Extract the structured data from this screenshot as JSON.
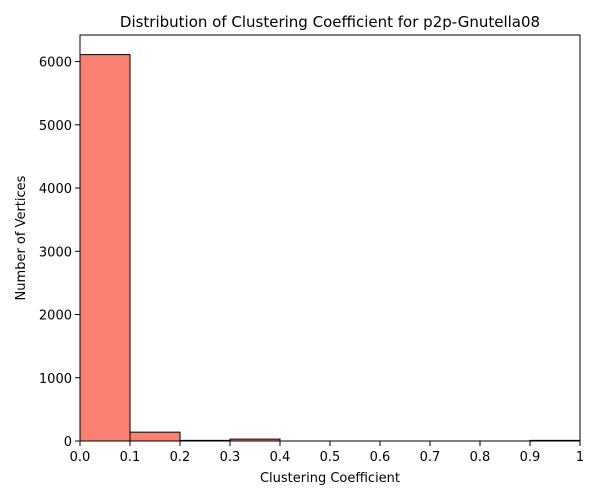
{
  "chart_data": {
    "type": "bar",
    "title": "Distribution of Clustering Coefficient for p2p-Gnutella08",
    "xlabel": "Clustering Coefficient",
    "ylabel": "Number of Vertices",
    "bin_edges": [
      0.0,
      0.1,
      0.2,
      0.3,
      0.4,
      0.5,
      0.6,
      0.7,
      0.8,
      0.9,
      1.0
    ],
    "values": [
      6110,
      140,
      10,
      30,
      0,
      0,
      0,
      0,
      0,
      10
    ],
    "xlim": [
      0,
      1
    ],
    "ylim": [
      0,
      6420
    ],
    "xticks": [
      0.0,
      0.1,
      0.2,
      0.3,
      0.4,
      0.5,
      0.6,
      0.7,
      0.8,
      0.9,
      1.0
    ],
    "xtick_labels": [
      "0.0",
      "0.1",
      "0.2",
      "0.3",
      "0.4",
      "0.5",
      "0.6",
      "0.7",
      "0.8",
      "0.9",
      "1"
    ],
    "yticks": [
      0,
      1000,
      2000,
      3000,
      4000,
      5000,
      6000
    ],
    "ytick_labels": [
      "0",
      "1000",
      "2000",
      "3000",
      "4000",
      "5000",
      "6000"
    ],
    "grid": false,
    "colors": {
      "bar_fill": "#fa8072",
      "bar_edge": "#000000"
    }
  }
}
